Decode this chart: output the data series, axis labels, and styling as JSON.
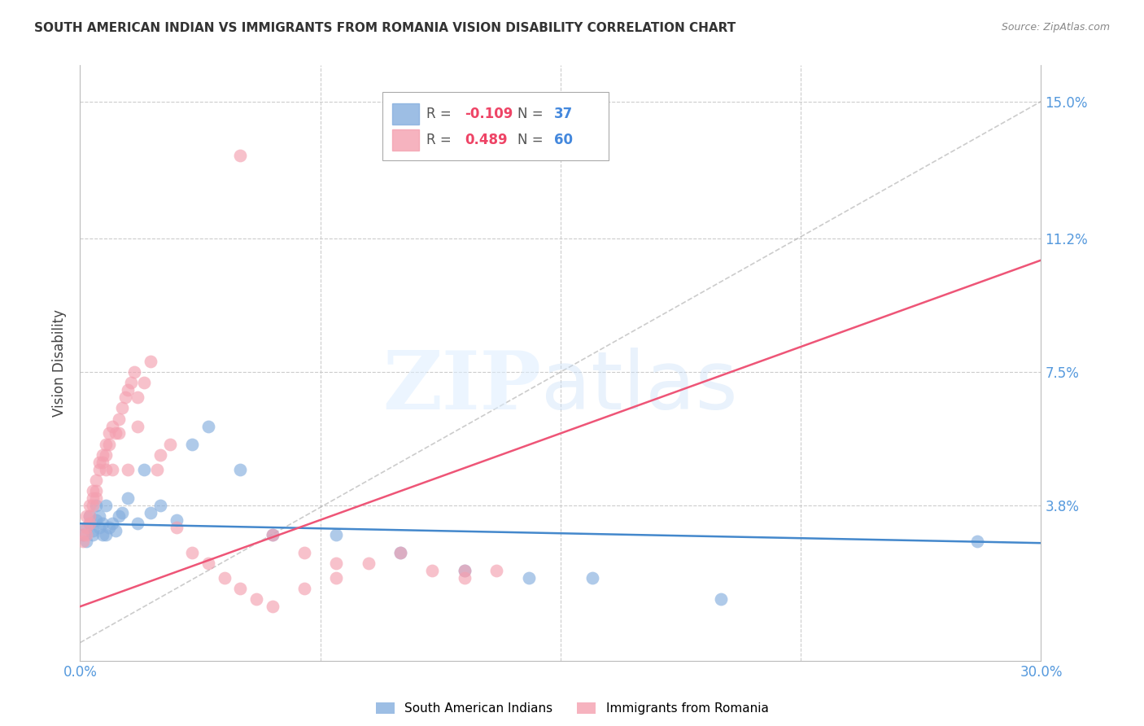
{
  "title": "SOUTH AMERICAN INDIAN VS IMMIGRANTS FROM ROMANIA VISION DISABILITY CORRELATION CHART",
  "source": "Source: ZipAtlas.com",
  "ylabel": "Vision Disability",
  "xlim": [
    0.0,
    0.3
  ],
  "ylim": [
    -0.005,
    0.16
  ],
  "yticks": [
    0.0,
    0.038,
    0.075,
    0.112,
    0.15
  ],
  "xticks": [
    0.0,
    0.075,
    0.15,
    0.225,
    0.3
  ],
  "grid_color": "#cccccc",
  "background_color": "#ffffff",
  "blue_color": "#85aede",
  "pink_color": "#f4a0b0",
  "blue_R": -0.109,
  "blue_N": 37,
  "pink_R": 0.489,
  "pink_N": 60,
  "legend_label_blue": "South American Indians",
  "legend_label_pink": "Immigrants from Romania",
  "blue_trend_intercept": 0.033,
  "blue_trend_slope": -0.018,
  "pink_trend_intercept": 0.01,
  "pink_trend_slope": 0.32,
  "ref_line_slope": 0.5,
  "ref_line_intercept": 0.0,
  "blue_x": [
    0.001,
    0.002,
    0.002,
    0.003,
    0.003,
    0.004,
    0.004,
    0.005,
    0.005,
    0.006,
    0.006,
    0.007,
    0.007,
    0.008,
    0.008,
    0.009,
    0.01,
    0.011,
    0.012,
    0.013,
    0.015,
    0.018,
    0.02,
    0.022,
    0.025,
    0.03,
    0.035,
    0.04,
    0.05,
    0.06,
    0.08,
    0.1,
    0.12,
    0.14,
    0.16,
    0.2,
    0.28
  ],
  "blue_y": [
    0.03,
    0.032,
    0.028,
    0.033,
    0.035,
    0.03,
    0.031,
    0.034,
    0.038,
    0.032,
    0.035,
    0.033,
    0.03,
    0.038,
    0.03,
    0.032,
    0.033,
    0.031,
    0.035,
    0.036,
    0.04,
    0.033,
    0.048,
    0.036,
    0.038,
    0.034,
    0.055,
    0.06,
    0.048,
    0.03,
    0.03,
    0.025,
    0.02,
    0.018,
    0.018,
    0.012,
    0.028
  ],
  "pink_x": [
    0.001,
    0.001,
    0.002,
    0.002,
    0.002,
    0.003,
    0.003,
    0.003,
    0.004,
    0.004,
    0.004,
    0.005,
    0.005,
    0.005,
    0.006,
    0.006,
    0.007,
    0.007,
    0.008,
    0.008,
    0.008,
    0.009,
    0.009,
    0.01,
    0.01,
    0.011,
    0.012,
    0.012,
    0.013,
    0.014,
    0.015,
    0.015,
    0.016,
    0.017,
    0.018,
    0.018,
    0.02,
    0.022,
    0.024,
    0.025,
    0.028,
    0.03,
    0.035,
    0.04,
    0.045,
    0.05,
    0.055,
    0.06,
    0.07,
    0.08,
    0.09,
    0.1,
    0.11,
    0.12,
    0.13,
    0.05,
    0.06,
    0.07,
    0.08,
    0.12
  ],
  "pink_y": [
    0.03,
    0.028,
    0.032,
    0.03,
    0.035,
    0.033,
    0.035,
    0.038,
    0.04,
    0.038,
    0.042,
    0.04,
    0.045,
    0.042,
    0.048,
    0.05,
    0.05,
    0.052,
    0.048,
    0.055,
    0.052,
    0.055,
    0.058,
    0.06,
    0.048,
    0.058,
    0.062,
    0.058,
    0.065,
    0.068,
    0.07,
    0.048,
    0.072,
    0.075,
    0.068,
    0.06,
    0.072,
    0.078,
    0.048,
    0.052,
    0.055,
    0.032,
    0.025,
    0.022,
    0.018,
    0.015,
    0.012,
    0.01,
    0.015,
    0.018,
    0.022,
    0.025,
    0.02,
    0.018,
    0.02,
    0.135,
    0.03,
    0.025,
    0.022,
    0.02
  ]
}
